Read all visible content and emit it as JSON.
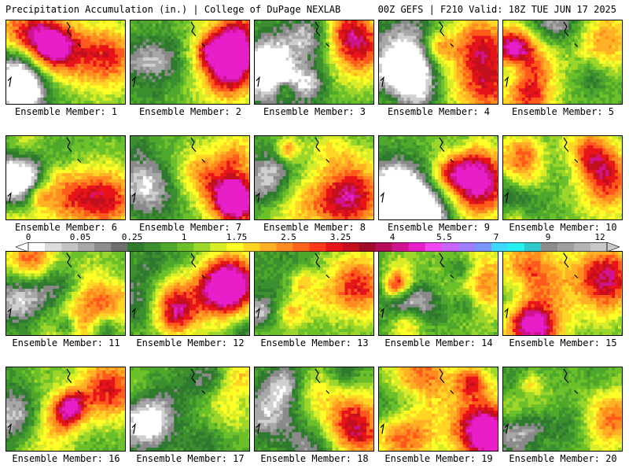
{
  "header": {
    "left_text": "Precipitation Accumulation (in.) | College of DuPage NEXLAB",
    "right_text": "00Z GEFS | F210 Valid: 18Z TUE JUN 17 2025"
  },
  "panels": [
    {
      "label": "Ensemble Member: 1"
    },
    {
      "label": "Ensemble Member: 2"
    },
    {
      "label": "Ensemble Member: 3"
    },
    {
      "label": "Ensemble Member: 4"
    },
    {
      "label": "Ensemble Member: 5"
    },
    {
      "label": "Ensemble Member: 6"
    },
    {
      "label": "Ensemble Member: 7"
    },
    {
      "label": "Ensemble Member: 8"
    },
    {
      "label": "Ensemble Member: 9"
    },
    {
      "label": "Ensemble Member: 10"
    },
    {
      "label": "Ensemble Member: 11"
    },
    {
      "label": "Ensemble Member: 12"
    },
    {
      "label": "Ensemble Member: 13"
    },
    {
      "label": "Ensemble Member: 14"
    },
    {
      "label": "Ensemble Member: 15"
    },
    {
      "label": "Ensemble Member: 16"
    },
    {
      "label": "Ensemble Member: 17"
    },
    {
      "label": "Ensemble Member: 18"
    },
    {
      "label": "Ensemble Member: 19"
    },
    {
      "label": "Ensemble Member: 20"
    }
  ],
  "colorbar": {
    "tick_labels": [
      "0",
      "0.05",
      "0.25",
      "1",
      "1.75",
      "2.5",
      "3.25",
      "4",
      "5.5",
      "7",
      "9",
      "12"
    ],
    "colors": [
      "#ffffff",
      "#dcdcdc",
      "#c4c4c4",
      "#a8a8a8",
      "#8c8c8c",
      "#6e6e6e",
      "#2f7a2f",
      "#3c8f2e",
      "#4ea82c",
      "#6cc02a",
      "#9cd62a",
      "#d8ec28",
      "#ffff28",
      "#ffd626",
      "#ffb024",
      "#ff8c20",
      "#ff641c",
      "#ff3a18",
      "#e8141a",
      "#c4101e",
      "#a00c28",
      "#b40e5a",
      "#d01490",
      "#e81ec8",
      "#f048f0",
      "#c864f8",
      "#a07cff",
      "#7c94ff",
      "#3cd8ff",
      "#28f0f0",
      "#30c8c8",
      "#8c8c8c",
      "#a0a0a0",
      "#b4b4b4",
      "#c8c8c8"
    ]
  }
}
